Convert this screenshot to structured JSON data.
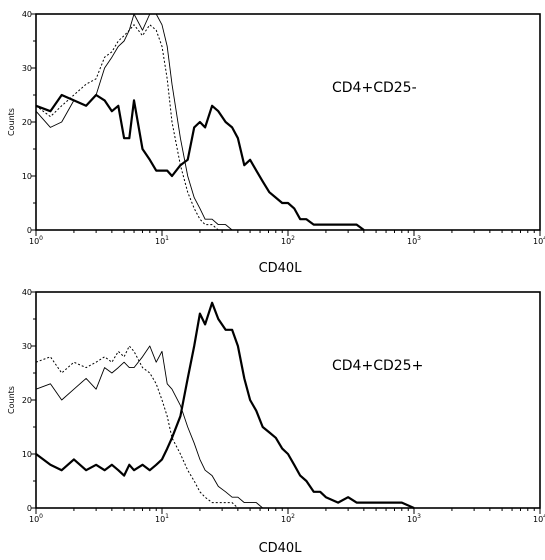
{
  "chart_data": [
    {
      "type": "line",
      "title": "CD4+CD25-",
      "xlabel": "CD40L",
      "ylabel": "Counts",
      "xscale": "log",
      "xlim": [
        1,
        10000
      ],
      "ylim": [
        0,
        40
      ],
      "x_ticks": [
        "10",
        "10",
        "10",
        "10",
        "10"
      ],
      "x_tick_exponents": [
        "0",
        "1",
        "2",
        "3",
        "4"
      ],
      "y_ticks": [
        "0",
        "10",
        "20",
        "30",
        "40"
      ],
      "grid": false,
      "series": [
        {
          "style": "thick",
          "x": [
            1,
            1.3,
            1.6,
            2,
            2.5,
            3,
            3.5,
            4,
            4.5,
            5,
            5.5,
            6,
            7,
            8,
            9,
            10,
            11,
            12,
            14,
            16,
            18,
            20,
            22,
            25,
            28,
            32,
            36,
            40,
            45,
            50,
            56,
            63,
            71,
            80,
            90,
            100,
            112,
            125,
            140,
            160,
            180,
            200,
            250,
            300,
            350,
            400
          ],
          "y": [
            23,
            22,
            25,
            24,
            23,
            25,
            24,
            22,
            23,
            17,
            17,
            24,
            15,
            13,
            11,
            11,
            11,
            10,
            12,
            13,
            19,
            20,
            19,
            23,
            22,
            20,
            19,
            17,
            12,
            13,
            11,
            9,
            7,
            6,
            5,
            5,
            4,
            2,
            2,
            1,
            1,
            1,
            1,
            1,
            1,
            0
          ]
        },
        {
          "style": "thin",
          "x": [
            1,
            1.3,
            1.6,
            2,
            2.5,
            3,
            3.5,
            4,
            4.5,
            5,
            5.5,
            6,
            7,
            8,
            9,
            10,
            11,
            12,
            14,
            16,
            18,
            20,
            22,
            25,
            28,
            32,
            36
          ],
          "y": [
            22,
            19,
            20,
            24,
            23,
            25,
            30,
            32,
            34,
            35,
            37,
            40,
            37,
            40,
            40,
            38,
            34,
            27,
            17,
            10,
            6,
            4,
            2,
            2,
            1,
            1,
            0
          ]
        },
        {
          "style": "dotted",
          "x": [
            1,
            1.3,
            1.6,
            2,
            2.5,
            3,
            3.5,
            4,
            4.5,
            5,
            5.5,
            6,
            7,
            8,
            9,
            10,
            11,
            12,
            14,
            16,
            18,
            20,
            22,
            25,
            28
          ],
          "y": [
            23,
            21,
            23,
            25,
            27,
            28,
            32,
            33,
            35,
            36,
            37,
            38,
            36,
            38,
            37,
            34,
            28,
            20,
            12,
            7,
            4,
            2,
            1,
            1,
            0
          ]
        }
      ]
    },
    {
      "type": "line",
      "title": "CD4+CD25+",
      "xlabel": "CD40L",
      "ylabel": "Counts",
      "xscale": "log",
      "xlim": [
        1,
        10000
      ],
      "ylim": [
        0,
        40
      ],
      "x_ticks": [
        "10",
        "10",
        "10",
        "10",
        "10"
      ],
      "x_tick_exponents": [
        "0",
        "1",
        "2",
        "3",
        "4"
      ],
      "y_ticks": [
        "0",
        "10",
        "20",
        "30",
        "40"
      ],
      "grid": false,
      "series": [
        {
          "style": "thick",
          "x": [
            1,
            1.3,
            1.6,
            2,
            2.5,
            3,
            3.5,
            4,
            4.5,
            5,
            5.5,
            6,
            7,
            8,
            9,
            10,
            11,
            12,
            14,
            16,
            18,
            20,
            22,
            25,
            28,
            32,
            36,
            40,
            45,
            50,
            56,
            63,
            71,
            80,
            90,
            100,
            112,
            125,
            140,
            160,
            180,
            200,
            250,
            300,
            350,
            400,
            500,
            600,
            700,
            800,
            1000
          ],
          "y": [
            10,
            8,
            7,
            9,
            7,
            8,
            7,
            8,
            7,
            6,
            8,
            7,
            8,
            7,
            8,
            9,
            11,
            13,
            17,
            24,
            30,
            36,
            34,
            38,
            35,
            33,
            33,
            30,
            24,
            20,
            18,
            15,
            14,
            13,
            11,
            10,
            8,
            6,
            5,
            3,
            3,
            2,
            1,
            2,
            1,
            1,
            1,
            1,
            1,
            1,
            0
          ]
        },
        {
          "style": "thin",
          "x": [
            1,
            1.3,
            1.6,
            2,
            2.5,
            3,
            3.5,
            4,
            4.5,
            5,
            5.5,
            6,
            7,
            8,
            9,
            10,
            11,
            12,
            14,
            16,
            18,
            20,
            22,
            25,
            28,
            32,
            36,
            40,
            45,
            50,
            56,
            63
          ],
          "y": [
            22,
            23,
            20,
            22,
            24,
            22,
            26,
            25,
            26,
            27,
            26,
            26,
            28,
            30,
            27,
            29,
            23,
            22,
            19,
            15,
            12,
            9,
            7,
            6,
            4,
            3,
            2,
            2,
            1,
            1,
            1,
            0
          ]
        },
        {
          "style": "dotted",
          "x": [
            1,
            1.3,
            1.6,
            2,
            2.5,
            3,
            3.5,
            4,
            4.5,
            5,
            5.5,
            6,
            7,
            8,
            9,
            10,
            11,
            12,
            14,
            16,
            18,
            20,
            22,
            25,
            28,
            32,
            36,
            40
          ],
          "y": [
            27,
            28,
            25,
            27,
            26,
            27,
            28,
            27,
            29,
            28,
            30,
            29,
            26,
            25,
            23,
            20,
            17,
            13,
            10,
            7,
            5,
            3,
            2,
            1,
            1,
            1,
            1,
            0
          ]
        }
      ]
    }
  ]
}
